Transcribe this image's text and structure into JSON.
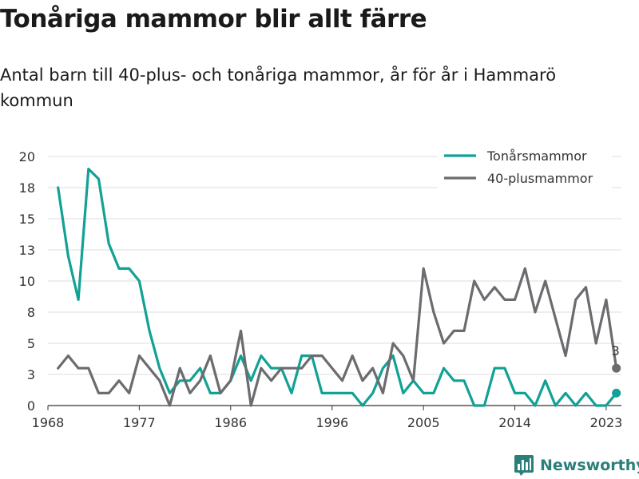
{
  "title": "Tonåriga mammor blir allt färre",
  "subtitle": "Antal barn till 40-plus- och tonåriga mammor, år för år i Hammarö kommun",
  "brand": {
    "name": "Newsworthy",
    "color": "#2a7f78",
    "icon": "bar-chart-logo-icon"
  },
  "colors": {
    "teal": "#11a195",
    "gray": "#6b6b70",
    "grid": "#dddddd",
    "axis": "#333333"
  },
  "chart_data": {
    "type": "line",
    "x": [
      1968,
      1969,
      1970,
      1971,
      1972,
      1973,
      1974,
      1975,
      1976,
      1977,
      1978,
      1979,
      1980,
      1981,
      1982,
      1983,
      1984,
      1985,
      1986,
      1987,
      1988,
      1989,
      1990,
      1991,
      1992,
      1993,
      1994,
      1995,
      1996,
      1997,
      1998,
      1999,
      2000,
      2001,
      2002,
      2003,
      2004,
      2005,
      2006,
      2007,
      2008,
      2009,
      2010,
      2011,
      2012,
      2013,
      2014,
      2015,
      2016,
      2017,
      2018,
      2019,
      2020,
      2021,
      2022,
      2023,
      2024
    ],
    "xticks": [
      "1968",
      "1977",
      "1986",
      "1996",
      "2005",
      "2014",
      "2023"
    ],
    "yticks": [
      "0",
      "3",
      "5",
      "8",
      "10",
      "13",
      "15",
      "18",
      "20"
    ],
    "ylim": [
      0,
      20
    ],
    "grid": true,
    "legend_position": "top-right",
    "series": [
      {
        "name": "Tonårsmammor",
        "color": "#11a195",
        "values": [
          null,
          17.5,
          12,
          8.5,
          19,
          18.2,
          13,
          11,
          11,
          10,
          6,
          3,
          1,
          2,
          2,
          3,
          1,
          1,
          2,
          4,
          2,
          4,
          3,
          3,
          1,
          4,
          4,
          1,
          1,
          1,
          1,
          0,
          1,
          3,
          4,
          1,
          2,
          1,
          1,
          3,
          2,
          2,
          0,
          0,
          3,
          3,
          1,
          1,
          0,
          2,
          0,
          1,
          0,
          1,
          0,
          0,
          1
        ]
      },
      {
        "name": "40-plusmammor",
        "color": "#6b6b70",
        "values": [
          null,
          3,
          4,
          3,
          3,
          1,
          1,
          2,
          1,
          4,
          3,
          2,
          0,
          3,
          1,
          2,
          4,
          1,
          2,
          6,
          0,
          3,
          2,
          3,
          3,
          3,
          4,
          4,
          3,
          2,
          4,
          2,
          3,
          1,
          5,
          4,
          2,
          11,
          7.5,
          5,
          6,
          6,
          10,
          8.5,
          9.5,
          8.5,
          8.5,
          11,
          7.5,
          10,
          7,
          4,
          8.5,
          9.5,
          5,
          8.5,
          3
        ]
      }
    ],
    "end_label": "3"
  }
}
